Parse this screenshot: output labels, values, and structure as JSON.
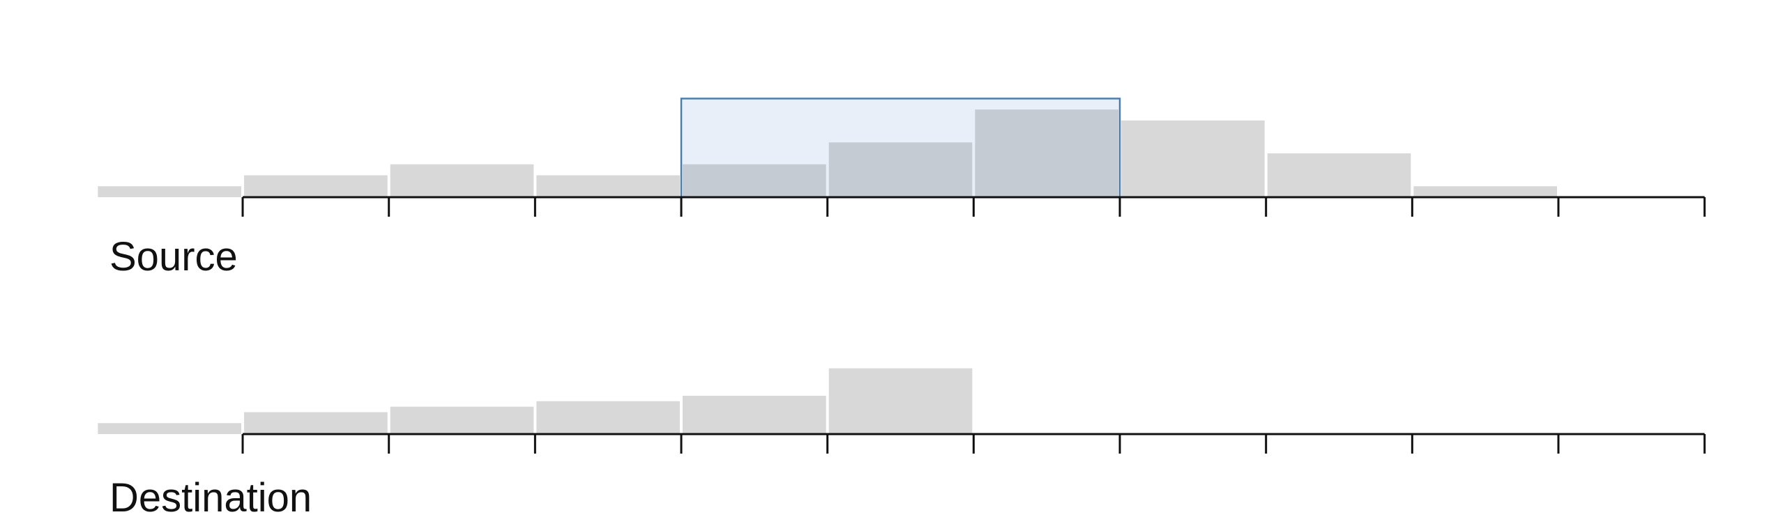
{
  "chart_data": [
    {
      "type": "bar",
      "label": "Source",
      "bins": [
        -1,
        0,
        1,
        2,
        3,
        4,
        5,
        6,
        7,
        8,
        9
      ],
      "values": [
        1,
        2,
        3,
        2,
        3,
        5,
        8,
        7,
        4,
        1,
        0
      ],
      "ylim": [
        0,
        11
      ],
      "xlim": [
        -1.66,
        10.55
      ],
      "ticks": [
        0,
        1,
        2,
        3,
        4,
        5,
        6,
        7,
        8,
        9,
        10
      ],
      "selection": {
        "x0": 3,
        "x1": 6,
        "y": 9
      },
      "colors": {
        "bar": "#d8d8d8",
        "selected_bar": "#c5cbd3",
        "selection_fill": "#e8eff8",
        "selection_stroke": "#4d7ea8",
        "axis": "#111111"
      }
    },
    {
      "type": "bar",
      "label": "Destination",
      "bins": [
        -1,
        0,
        1,
        2,
        3,
        4
      ],
      "values": [
        1,
        2,
        2.5,
        3,
        3.5,
        6
      ],
      "ylim": [
        0,
        11
      ],
      "xlim": [
        -1.66,
        10.55
      ],
      "ticks": [
        0,
        1,
        2,
        3,
        4,
        5,
        6,
        7,
        8,
        9,
        10
      ],
      "colors": {
        "bar": "#d8d8d8",
        "axis": "#111111"
      }
    }
  ]
}
